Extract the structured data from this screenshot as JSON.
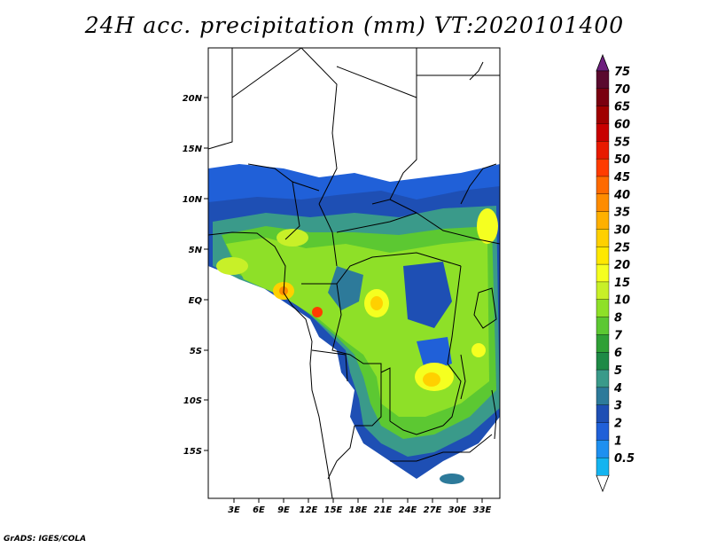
{
  "title": "24H acc. precipitation (mm) VT:2020101400",
  "credit": "GrADS: IGES/COLA",
  "map": {
    "lat_labels": [
      "20N",
      "15N",
      "10N",
      "5N",
      "EQ",
      "5S",
      "10S",
      "15S"
    ],
    "lon_labels": [
      "3E",
      "6E",
      "9E",
      "12E",
      "15E",
      "18E",
      "21E",
      "24E",
      "27E",
      "30E",
      "33E"
    ]
  },
  "colorbar": {
    "levels": [
      "75",
      "70",
      "65",
      "60",
      "55",
      "50",
      "45",
      "40",
      "35",
      "30",
      "25",
      "20",
      "15",
      "10",
      "8",
      "7",
      "6",
      "5",
      "4",
      "3",
      "2",
      "1",
      "0.5"
    ],
    "colors": [
      "#5a0a2e",
      "#7a0010",
      "#a00000",
      "#c80000",
      "#e81a00",
      "#ff3c00",
      "#ff6a00",
      "#ff8c00",
      "#ffb000",
      "#ffd000",
      "#ffe800",
      "#f5ff20",
      "#c8f028",
      "#8ee028",
      "#5cc832",
      "#2fa036",
      "#1e8a46",
      "#3a9a8a",
      "#2d7a9a",
      "#1e4fb4",
      "#2060d8",
      "#1e90f0",
      "#14b4f0"
    ],
    "top_cap_color": "#6e1f7e"
  }
}
